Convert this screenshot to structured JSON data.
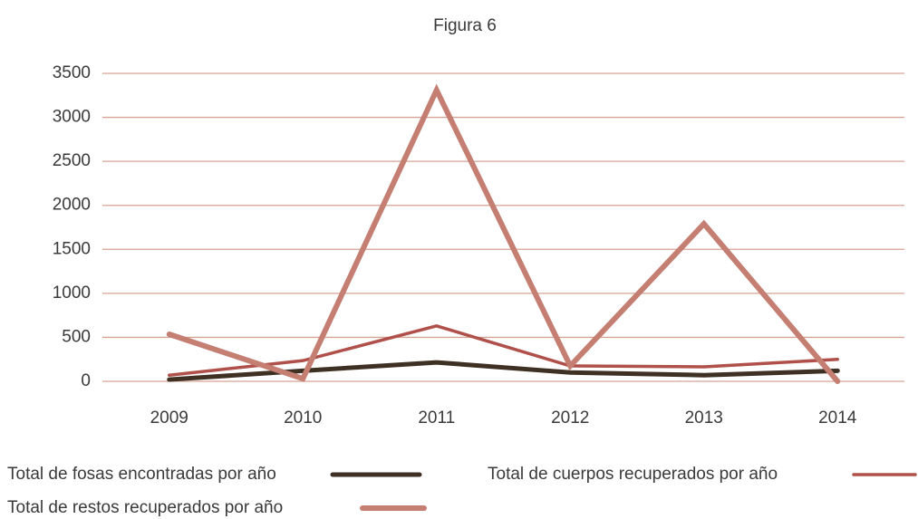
{
  "chart_data": {
    "type": "line",
    "title": "Figura 6",
    "categories": [
      "2009",
      "2010",
      "2011",
      "2012",
      "2013",
      "2014"
    ],
    "series": [
      {
        "name": "Total de fosas encontradas por año",
        "color": "#3f3024",
        "width": 5,
        "values": [
          20,
          120,
          215,
          100,
          70,
          120
        ]
      },
      {
        "name": "Total de cuerpos recuperados por año",
        "color": "#b0504a",
        "width": 3.5,
        "values": [
          70,
          235,
          630,
          175,
          165,
          250
        ]
      },
      {
        "name": "Total de restos recuperados por año",
        "color": "#c47f72",
        "width": 6,
        "values": [
          535,
          30,
          3310,
          175,
          1790,
          0
        ]
      }
    ],
    "ylim": [
      0,
      3500
    ],
    "yticks": [
      0,
      500,
      1000,
      1500,
      2000,
      2500,
      3000,
      3500
    ],
    "grid": true
  }
}
